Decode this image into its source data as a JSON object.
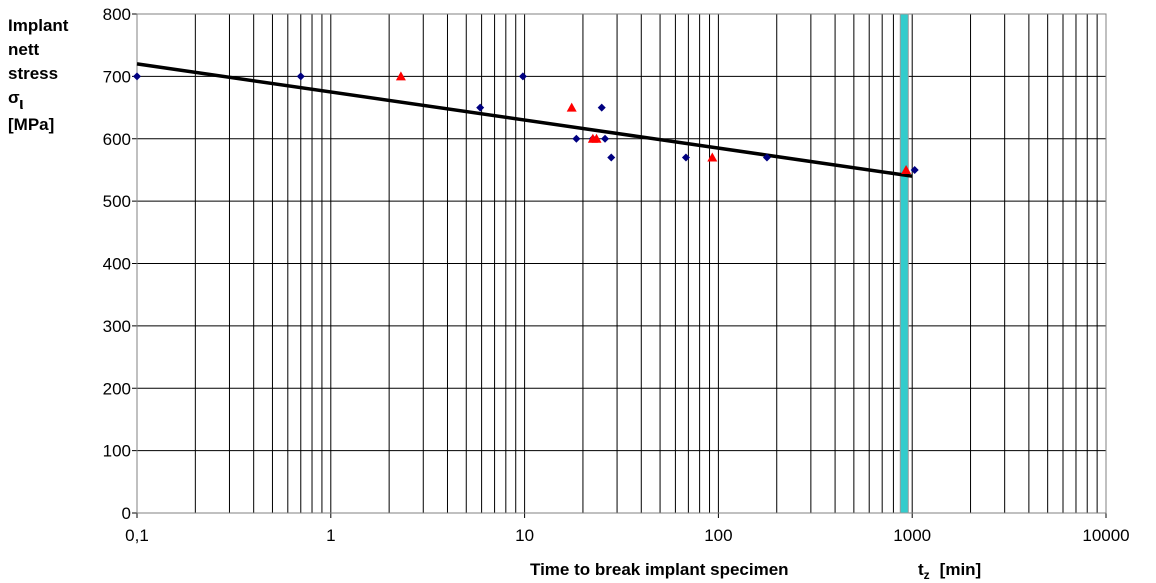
{
  "chart_data": {
    "type": "scatter",
    "x_scale": "log",
    "xlim": [
      0.1,
      10000
    ],
    "ylim": [
      0,
      800
    ],
    "grid": true,
    "x_ticks": [
      "0,1",
      "1",
      "10",
      "100",
      "1000",
      "10000"
    ],
    "y_ticks": [
      "0",
      "100",
      "200",
      "300",
      "400",
      "500",
      "600",
      "700",
      "800"
    ],
    "ylabel_lines": [
      "Implant",
      "nett",
      "stress",
      "σ",
      "ι",
      "[MPa]"
    ],
    "xlabel": "Time to break implant specimen",
    "xlabel_symbol": "t",
    "xlabel_subscript": "z",
    "xlabel_unit": "[min]",
    "series": [
      {
        "marker": "diamond",
        "color": "#000080",
        "points": [
          {
            "x": 0.1,
            "y": 700
          },
          {
            "x": 0.7,
            "y": 700
          },
          {
            "x": 5.9,
            "y": 650
          },
          {
            "x": 9.8,
            "y": 700
          },
          {
            "x": 18.5,
            "y": 600
          },
          {
            "x": 22.5,
            "y": 600
          },
          {
            "x": 25,
            "y": 650
          },
          {
            "x": 26,
            "y": 600
          },
          {
            "x": 28,
            "y": 570
          },
          {
            "x": 68,
            "y": 570
          },
          {
            "x": 178,
            "y": 570
          },
          {
            "x": 1030,
            "y": 550
          }
        ]
      },
      {
        "marker": "triangle",
        "color": "#ff0000",
        "points": [
          {
            "x": 2.3,
            "y": 700
          },
          {
            "x": 17.5,
            "y": 650
          },
          {
            "x": 22.5,
            "y": 600
          },
          {
            "x": 23.5,
            "y": 600
          },
          {
            "x": 93,
            "y": 570
          },
          {
            "x": 930,
            "y": 550
          }
        ]
      }
    ],
    "trend_line": {
      "color": "#000000",
      "from": {
        "x": 0.1,
        "y": 720
      },
      "to": {
        "x": 1000,
        "y": 540
      }
    },
    "vertical_marker": {
      "x": 910,
      "color": "#33cccc"
    }
  }
}
